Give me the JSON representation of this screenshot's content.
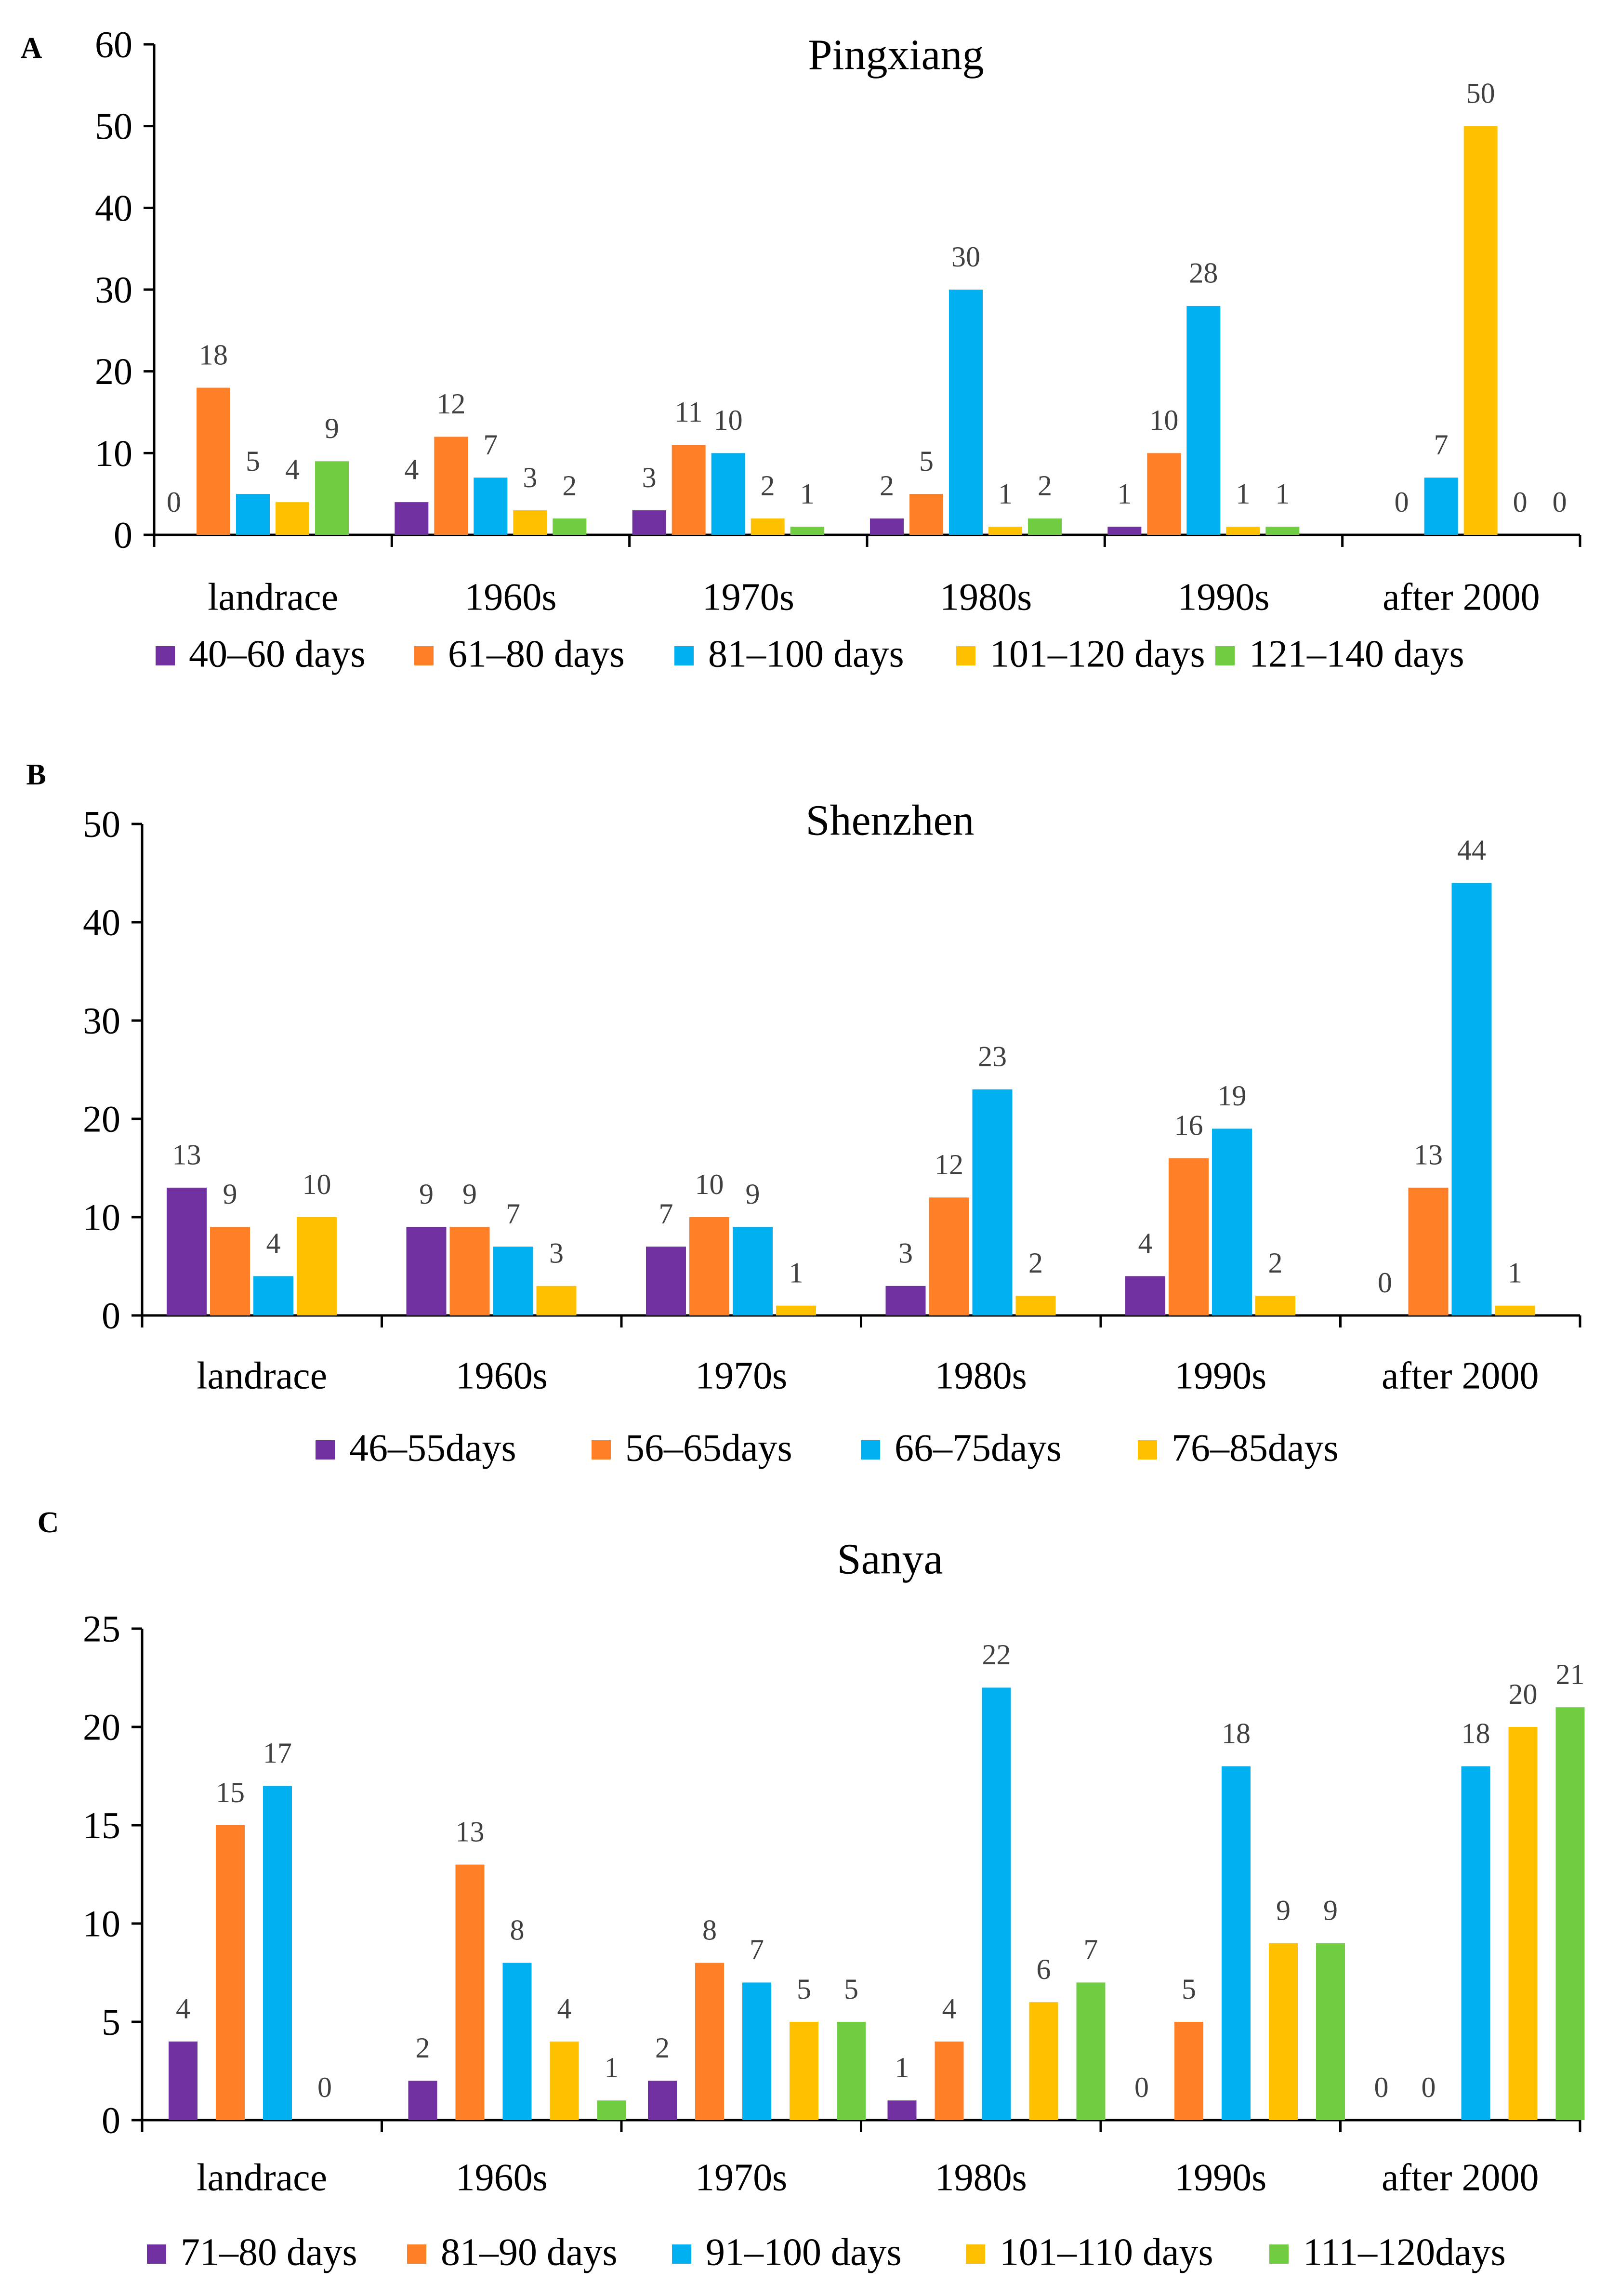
{
  "colors": {
    "purple": "#7030A0",
    "orange": "#FF7F27",
    "blue": "#00B0F0",
    "yellow": "#FFC000",
    "green": "#70CC40",
    "axis": "#000000",
    "label": "#404040"
  },
  "chart_data": [
    {
      "type": "bar",
      "panel": "A",
      "title": "Pingxiang",
      "xlabel": "",
      "ylabel": "",
      "ylim": [
        0,
        60
      ],
      "yticks": [
        0,
        10,
        20,
        30,
        40,
        50,
        60
      ],
      "grid": false,
      "legend": "bottom",
      "categories": [
        "landrace",
        "1960s",
        "1970s",
        "1980s",
        "1990s",
        "after 2000"
      ],
      "series": [
        {
          "name": "40–60 days",
          "color": "purple",
          "values": [
            0,
            4,
            3,
            2,
            1,
            null
          ]
        },
        {
          "name": "61–80 days",
          "color": "orange",
          "values": [
            18,
            12,
            11,
            5,
            10,
            0
          ]
        },
        {
          "name": "81–100 days",
          "color": "blue",
          "values": [
            5,
            7,
            10,
            30,
            28,
            7
          ]
        },
        {
          "name": "101–120 days",
          "color": "yellow",
          "values": [
            4,
            3,
            2,
            1,
            1,
            50
          ]
        },
        {
          "name": "121–140 days",
          "color": "green",
          "values": [
            9,
            2,
            1,
            2,
            1,
            0
          ]
        },
        {
          "name": "",
          "color": "green",
          "legend": false,
          "values": [
            null,
            null,
            null,
            null,
            null,
            0
          ]
        }
      ]
    },
    {
      "type": "bar",
      "panel": "B",
      "title": "Shenzhen",
      "xlabel": "",
      "ylabel": "",
      "ylim": [
        0,
        50
      ],
      "yticks": [
        0,
        10,
        20,
        30,
        40,
        50
      ],
      "grid": false,
      "legend": "bottom",
      "categories": [
        "landrace",
        "1960s",
        "1970s",
        "1980s",
        "1990s",
        "after 2000"
      ],
      "series": [
        {
          "name": "46–55days",
          "color": "purple",
          "values": [
            13,
            9,
            7,
            3,
            4,
            0
          ]
        },
        {
          "name": "56–65days",
          "color": "orange",
          "values": [
            9,
            9,
            10,
            12,
            16,
            13
          ]
        },
        {
          "name": "66–75days",
          "color": "blue",
          "values": [
            4,
            7,
            9,
            23,
            19,
            44
          ]
        },
        {
          "name": "76–85days",
          "color": "yellow",
          "values": [
            10,
            3,
            1,
            2,
            2,
            1
          ]
        }
      ]
    },
    {
      "type": "bar",
      "panel": "C",
      "title": "Sanya",
      "xlabel": "",
      "ylabel": "",
      "ylim": [
        0,
        25
      ],
      "yticks": [
        0,
        5,
        10,
        15,
        20,
        25
      ],
      "grid": false,
      "legend": "bottom",
      "categories": [
        "landrace",
        "1960s",
        "1970s",
        "1980s",
        "1990s",
        "after 2000"
      ],
      "series": [
        {
          "name": "71–80 days",
          "color": "purple",
          "values": [
            4,
            2,
            2,
            1,
            0,
            0
          ]
        },
        {
          "name": "81–90 days",
          "color": "orange",
          "values": [
            15,
            13,
            8,
            4,
            5,
            0
          ]
        },
        {
          "name": "91–100 days",
          "color": "blue",
          "values": [
            17,
            8,
            7,
            22,
            18,
            18
          ]
        },
        {
          "name": "101–110 days",
          "color": "yellow",
          "values": [
            0,
            4,
            5,
            6,
            9,
            20
          ]
        },
        {
          "name": "111–120days",
          "color": "green",
          "values": [
            null,
            1,
            5,
            7,
            9,
            21
          ]
        }
      ]
    }
  ]
}
